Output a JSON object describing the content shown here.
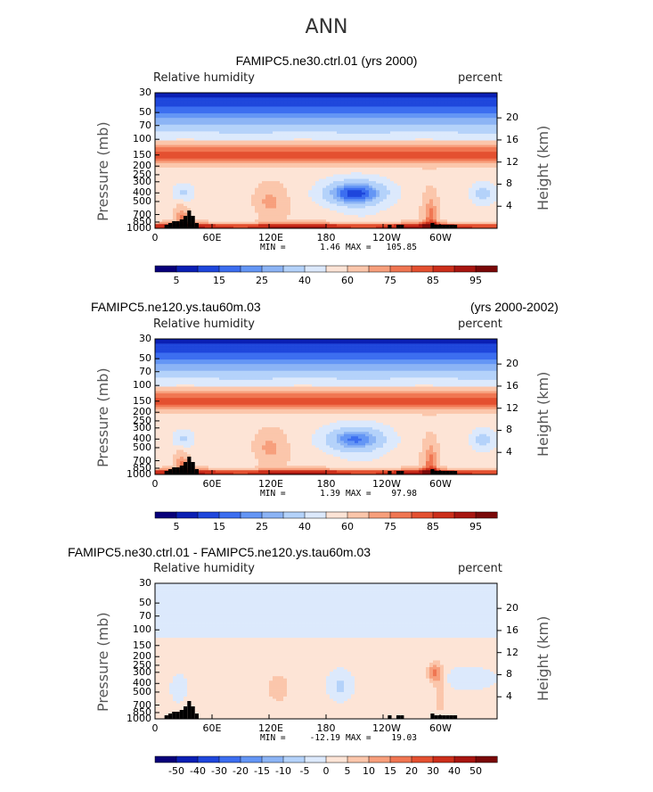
{
  "figure_title": "ANN",
  "chart_data": [
    {
      "type": "heatmap",
      "title": "FAMIPC5.ne30.ctrl.01 (yrs 2000)",
      "title_right": "",
      "variable": "Relative humidity",
      "units": "percent",
      "ylabel": "Pressure (mb)",
      "ylabel_right": "Height (km)",
      "x_ticks": [
        "0",
        "60E",
        "120E",
        "180",
        "120W",
        "60W"
      ],
      "y_ticks": [
        "30",
        "50",
        "70",
        "100",
        "150",
        "200",
        "250",
        "300",
        "400",
        "500",
        "700",
        "850",
        "1000"
      ],
      "height_ticks": [
        "20",
        "16",
        "12",
        "8",
        "4"
      ],
      "min_label": "MIN =",
      "min": "1.46",
      "max_label": "MAX =",
      "max": "105.85",
      "colorbar_labels": [
        "5",
        "15",
        "25",
        "40",
        "60",
        "75",
        "85",
        "95"
      ],
      "colorbar_colors": [
        "#08007a",
        "#0a1fb4",
        "#1e46dc",
        "#3c6ef0",
        "#6496f5",
        "#8cb4f5",
        "#b4d2fa",
        "#dce9fc",
        "#fde4d6",
        "#fbc6ab",
        "#f79f7c",
        "#f07652",
        "#e45030",
        "#cc2e1a",
        "#a81510",
        "#7a0808"
      ],
      "features": [
        {
          "name": "dry-core-central-pacific",
          "lon": 210,
          "p": 400,
          "value": 10
        },
        {
          "name": "dry-core-indian",
          "lon": 30,
          "p": 420,
          "value": 25
        },
        {
          "name": "dry-core-atlantic",
          "lon": 345,
          "p": 400,
          "value": 25
        },
        {
          "name": "moist-column-maritime",
          "lon": 120,
          "p": 500,
          "value": 75
        },
        {
          "name": "moist-column-andes",
          "lon": 290,
          "p": 700,
          "value": 80
        },
        {
          "name": "boundary-layer-moist",
          "lon": 180,
          "p": 950,
          "value": 90
        },
        {
          "name": "upper-moist-band",
          "lon": 180,
          "p": 150,
          "value": 85
        },
        {
          "name": "stratosphere-dry",
          "lon": 180,
          "p": 40,
          "value": 3
        }
      ]
    },
    {
      "type": "heatmap",
      "title": "FAMIPC5.ne120.ys.tau60m.03",
      "title_right": "(yrs 2000-2002)",
      "variable": "Relative humidity",
      "units": "percent",
      "ylabel": "Pressure (mb)",
      "ylabel_right": "Height (km)",
      "x_ticks": [
        "0",
        "60E",
        "120E",
        "180",
        "120W",
        "60W"
      ],
      "y_ticks": [
        "30",
        "50",
        "70",
        "100",
        "150",
        "200",
        "250",
        "300",
        "400",
        "500",
        "700",
        "850",
        "1000"
      ],
      "height_ticks": [
        "20",
        "16",
        "12",
        "8",
        "4"
      ],
      "min_label": "MIN =",
      "min": "1.39",
      "max_label": "MAX =",
      "max": "97.98",
      "colorbar_labels": [
        "5",
        "15",
        "25",
        "40",
        "60",
        "75",
        "85",
        "95"
      ],
      "colorbar_colors": [
        "#08007a",
        "#0a1fb4",
        "#1e46dc",
        "#3c6ef0",
        "#6496f5",
        "#8cb4f5",
        "#b4d2fa",
        "#dce9fc",
        "#fde4d6",
        "#fbc6ab",
        "#f79f7c",
        "#f07652",
        "#e45030",
        "#cc2e1a",
        "#a81510",
        "#7a0808"
      ],
      "features": [
        {
          "name": "dry-core-central-pacific",
          "lon": 215,
          "p": 420,
          "value": 15
        },
        {
          "name": "dry-core-indian",
          "lon": 30,
          "p": 400,
          "value": 25
        },
        {
          "name": "dry-core-atlantic",
          "lon": 345,
          "p": 400,
          "value": 20
        },
        {
          "name": "moist-column-maritime",
          "lon": 125,
          "p": 500,
          "value": 70
        },
        {
          "name": "moist-column-andes",
          "lon": 290,
          "p": 700,
          "value": 80
        },
        {
          "name": "boundary-layer-moist",
          "lon": 180,
          "p": 950,
          "value": 88
        },
        {
          "name": "upper-moist-band",
          "lon": 180,
          "p": 150,
          "value": 85
        },
        {
          "name": "stratosphere-dry",
          "lon": 180,
          "p": 40,
          "value": 3
        }
      ]
    },
    {
      "type": "heatmap",
      "title": "FAMIPC5.ne30.ctrl.01 - FAMIPC5.ne120.ys.tau60m.03",
      "title_right": "",
      "variable": "Relative humidity",
      "units": "percent",
      "ylabel": "Pressure (mb)",
      "ylabel_right": "Height (km)",
      "x_ticks": [
        "0",
        "60E",
        "120E",
        "180",
        "120W",
        "60W"
      ],
      "y_ticks": [
        "30",
        "50",
        "70",
        "100",
        "150",
        "200",
        "250",
        "300",
        "400",
        "500",
        "700",
        "850",
        "1000"
      ],
      "height_ticks": [
        "20",
        "16",
        "12",
        "8",
        "4"
      ],
      "min_label": "MIN =",
      "min": "-12.19",
      "max_label": "MAX =",
      "max": "19.03",
      "colorbar_labels": [
        "-50",
        "-40",
        "-30",
        "-20",
        "-15",
        "-10",
        "-5",
        "0",
        "5",
        "10",
        "15",
        "20",
        "30",
        "40",
        "50"
      ],
      "colorbar_colors": [
        "#08007a",
        "#0a1fb4",
        "#1e46dc",
        "#3c6ef0",
        "#6496f5",
        "#8cb4f5",
        "#b4d2fa",
        "#dce9fc",
        "#fde4d6",
        "#fbc6ab",
        "#f79f7c",
        "#f07652",
        "#e45030",
        "#cc2e1a",
        "#a81510",
        "#7a0808"
      ],
      "features": [
        {
          "name": "diff-positive-andes",
          "lon": 295,
          "p": 300,
          "value": 15
        },
        {
          "name": "diff-positive-maritime",
          "lon": 130,
          "p": 450,
          "value": 8
        },
        {
          "name": "diff-negative-central",
          "lon": 195,
          "p": 420,
          "value": -8
        },
        {
          "name": "diff-negative-indian",
          "lon": 25,
          "p": 450,
          "value": -5
        }
      ]
    }
  ]
}
